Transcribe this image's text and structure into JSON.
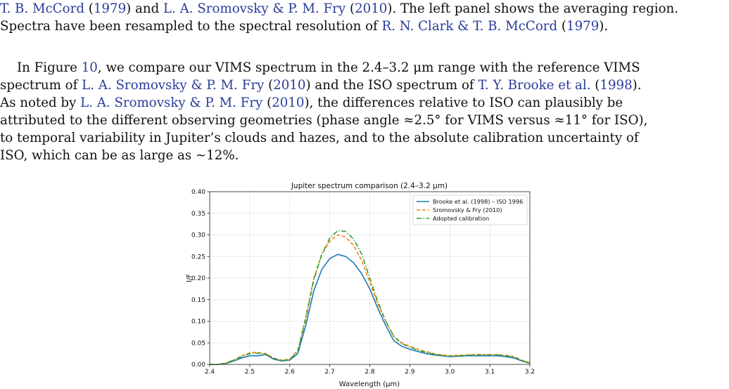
{
  "intro": {
    "line1": [
      {
        "t": "T. B. McCord",
        "c": true
      },
      {
        "t": " (",
        "c": false
      },
      {
        "t": "1979",
        "c": true
      },
      {
        "t": ") and ",
        "c": false
      },
      {
        "t": "L. A. Sromovsky & P. M. Fry",
        "c": true
      },
      {
        "t": " (",
        "c": false
      },
      {
        "t": "2010",
        "c": true
      },
      {
        "t": "). The left panel shows the averaging region.",
        "c": false
      }
    ],
    "line2": [
      {
        "t": "Spectra have been resampled to the spectral resolution of ",
        "c": false
      },
      {
        "t": "R. N. Clark & T. B. McCord",
        "c": true
      },
      {
        "t": " (",
        "c": false
      },
      {
        "t": "1979",
        "c": true
      },
      {
        "t": ").",
        "c": false
      }
    ]
  },
  "body": {
    "lines": [
      [
        {
          "t": "In Figure ",
          "c": false
        },
        {
          "t": "10",
          "c": true
        },
        {
          "t": ", we compare our VIMS spectrum in the 2.4–3.2 μm range with the reference VIMS",
          "c": false
        }
      ],
      [
        {
          "t": "spectrum of ",
          "c": false
        },
        {
          "t": "L. A. Sromovsky & P. M. Fry",
          "c": true
        },
        {
          "t": " (",
          "c": false
        },
        {
          "t": "2010",
          "c": true
        },
        {
          "t": ") and the ISO spectrum of ",
          "c": false
        },
        {
          "t": "T. Y. Brooke et al.",
          "c": true
        },
        {
          "t": " (",
          "c": false
        },
        {
          "t": "1998",
          "c": true
        },
        {
          "t": ").",
          "c": false
        }
      ],
      [
        {
          "t": "As noted by ",
          "c": false
        },
        {
          "t": "L. A. Sromovsky & P. M. Fry",
          "c": true
        },
        {
          "t": " (",
          "c": false
        },
        {
          "t": "2010",
          "c": true
        },
        {
          "t": "), the differences relative to ISO can plausibly be",
          "c": false
        }
      ],
      [
        {
          "t": "attributed to the different observing geometries (phase angle ≈2.5° for VIMS versus ≈11° for ISO),",
          "c": false
        }
      ],
      [
        {
          "t": "to temporal variability in Jupiter’s clouds and hazes, and to the absolute calibration uncertainty of",
          "c": false
        }
      ],
      [
        {
          "t": "ISO, which can be as large as ∼12%.",
          "c": false
        }
      ]
    ]
  },
  "chart_data": {
    "type": "line",
    "title": "Jupiter spectrum comparison (2.4–3.2 μm)",
    "xlabel": "Wavelength (μm)",
    "ylabel": "I/F",
    "xlim": [
      2.4,
      3.2
    ],
    "ylim": [
      0.0,
      0.4
    ],
    "xticks": [
      "2.4",
      "2.5",
      "2.6",
      "2.7",
      "2.8",
      "2.9",
      "3.0",
      "3.1",
      "3.2"
    ],
    "yticks": [
      "0.00",
      "0.05",
      "0.10",
      "0.15",
      "0.20",
      "0.25",
      "0.30",
      "0.35",
      "0.40"
    ],
    "grid": true,
    "legend_position": "top-right",
    "x": [
      2.4,
      2.42,
      2.44,
      2.46,
      2.48,
      2.5,
      2.52,
      2.54,
      2.56,
      2.58,
      2.6,
      2.62,
      2.64,
      2.66,
      2.68,
      2.7,
      2.72,
      2.74,
      2.76,
      2.78,
      2.8,
      2.82,
      2.84,
      2.86,
      2.88,
      2.9,
      2.92,
      2.94,
      2.96,
      2.98,
      3.0,
      3.02,
      3.04,
      3.06,
      3.08,
      3.1,
      3.12,
      3.14,
      3.16,
      3.18,
      3.2
    ],
    "series": [
      {
        "name": "Brooke et al. (1998) – ISO 1996",
        "style": "solid",
        "color": "#1f77b4",
        "values": [
          0.0,
          0.0,
          0.002,
          0.008,
          0.015,
          0.02,
          0.02,
          0.023,
          0.012,
          0.008,
          0.01,
          0.025,
          0.09,
          0.17,
          0.22,
          0.245,
          0.255,
          0.25,
          0.235,
          0.21,
          0.175,
          0.13,
          0.09,
          0.055,
          0.042,
          0.035,
          0.03,
          0.025,
          0.022,
          0.02,
          0.018,
          0.019,
          0.02,
          0.02,
          0.02,
          0.02,
          0.02,
          0.018,
          0.015,
          0.008,
          0.003
        ]
      },
      {
        "name": "Sromovsky & Fry (2010)",
        "style": "dashed",
        "color": "#ff7f0e",
        "values": [
          0.0,
          0.0,
          0.003,
          0.01,
          0.02,
          0.027,
          0.028,
          0.025,
          0.015,
          0.01,
          0.012,
          0.032,
          0.11,
          0.2,
          0.255,
          0.285,
          0.3,
          0.295,
          0.275,
          0.24,
          0.19,
          0.14,
          0.1,
          0.065,
          0.05,
          0.042,
          0.035,
          0.03,
          0.025,
          0.022,
          0.02,
          0.021,
          0.022,
          0.023,
          0.023,
          0.023,
          0.023,
          0.021,
          0.018,
          0.01,
          0.004
        ]
      },
      {
        "name": "Adopted calibration",
        "style": "dashdot",
        "color": "#2ca02c",
        "values": [
          0.0,
          0.0,
          0.003,
          0.01,
          0.018,
          0.025,
          0.026,
          0.024,
          0.014,
          0.009,
          0.011,
          0.03,
          0.105,
          0.195,
          0.255,
          0.292,
          0.31,
          0.308,
          0.29,
          0.255,
          0.2,
          0.145,
          0.1,
          0.065,
          0.048,
          0.04,
          0.033,
          0.028,
          0.024,
          0.021,
          0.019,
          0.02,
          0.021,
          0.022,
          0.022,
          0.022,
          0.022,
          0.02,
          0.017,
          0.009,
          0.003
        ]
      }
    ]
  }
}
